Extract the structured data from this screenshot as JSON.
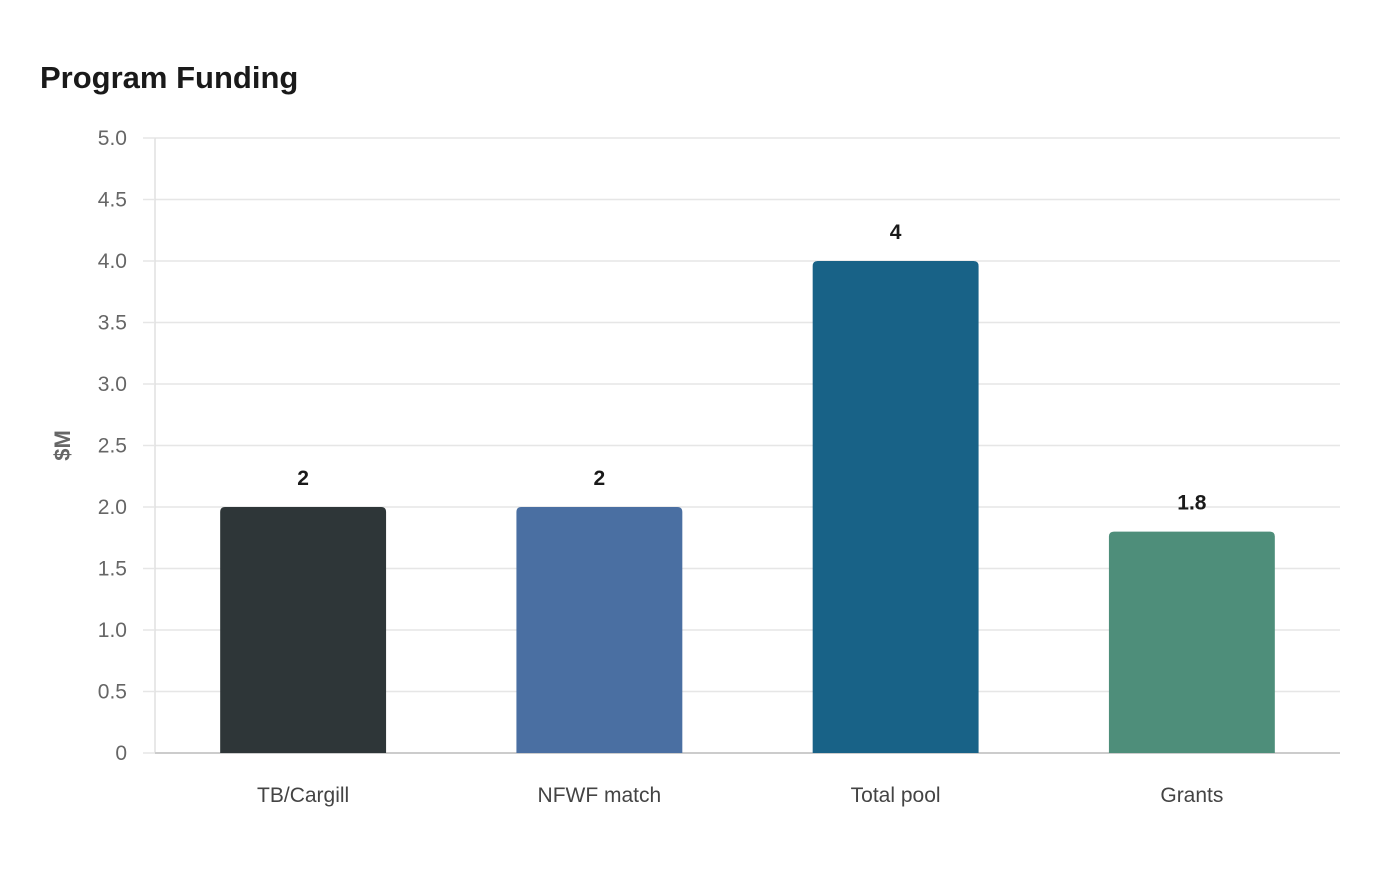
{
  "chart_data": {
    "type": "bar",
    "title": "Program Funding",
    "xlabel": "",
    "ylabel": "$M",
    "categories": [
      "TB/Cargill",
      "NFWF match",
      "Total pool",
      "Grants"
    ],
    "values": [
      2,
      2,
      4,
      1.8
    ],
    "value_labels": [
      "2",
      "2",
      "4",
      "1.8"
    ],
    "colors": [
      "#2e3638",
      "#4a6fa2",
      "#186287",
      "#4e8e7a"
    ],
    "ylim": [
      0,
      5.0
    ],
    "yticks": [
      0,
      0.5,
      1.0,
      1.5,
      2.0,
      2.5,
      3.0,
      3.5,
      4.0,
      4.5,
      5.0
    ],
    "ytick_labels": [
      "0",
      "0.5",
      "1.0",
      "1.5",
      "2.0",
      "2.5",
      "3.0",
      "3.5",
      "4.0",
      "4.5",
      "5.0"
    ],
    "grid": true,
    "legend": "none"
  }
}
